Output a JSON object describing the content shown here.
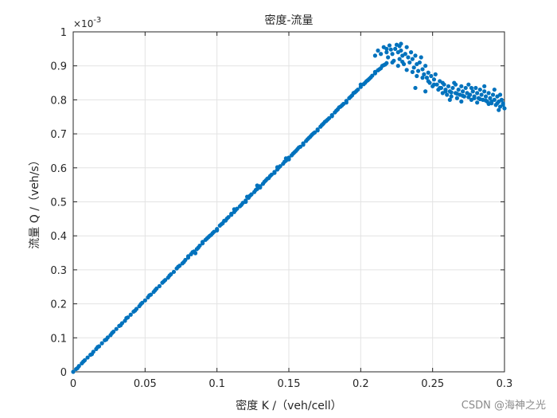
{
  "chart_data": {
    "type": "scatter",
    "title": "密度-流量",
    "xlabel": "密度 K /（veh/cell）",
    "ylabel": "流量 Q /（veh/s）",
    "xlim": [
      0,
      0.3
    ],
    "ylim": [
      0,
      1
    ],
    "y_multiplier": "×10",
    "y_multiplier_exponent": "-3",
    "xticks": [
      0,
      0.05,
      0.1,
      0.15,
      0.2,
      0.25,
      0.3
    ],
    "xtick_labels": [
      "0",
      "0.05",
      "0.1",
      "0.15",
      "0.2",
      "0.25",
      "0.3"
    ],
    "yticks": [
      0,
      0.1,
      0.2,
      0.3,
      0.4,
      0.5,
      0.6,
      0.7,
      0.8,
      0.9,
      1
    ],
    "ytick_labels": [
      "0",
      "0.1",
      "0.2",
      "0.3",
      "0.4",
      "0.5",
      "0.6",
      "0.7",
      "0.8",
      "0.9",
      "1"
    ],
    "grid": true,
    "series": [
      {
        "color": "#0072BD",
        "points": [
          [
            0.0,
            0.0
          ],
          [
            0.002,
            0.008
          ],
          [
            0.004,
            0.017
          ],
          [
            0.006,
            0.025
          ],
          [
            0.008,
            0.034
          ],
          [
            0.01,
            0.042
          ],
          [
            0.012,
            0.05
          ],
          [
            0.014,
            0.059
          ],
          [
            0.016,
            0.067
          ],
          [
            0.018,
            0.075
          ],
          [
            0.02,
            0.084
          ],
          [
            0.022,
            0.093
          ],
          [
            0.024,
            0.101
          ],
          [
            0.026,
            0.108
          ],
          [
            0.028,
            0.118
          ],
          [
            0.03,
            0.126
          ],
          [
            0.032,
            0.135
          ],
          [
            0.034,
            0.143
          ],
          [
            0.036,
            0.15
          ],
          [
            0.038,
            0.16
          ],
          [
            0.04,
            0.168
          ],
          [
            0.042,
            0.177
          ],
          [
            0.044,
            0.185
          ],
          [
            0.046,
            0.193
          ],
          [
            0.048,
            0.203
          ],
          [
            0.05,
            0.21
          ],
          [
            0.052,
            0.219
          ],
          [
            0.054,
            0.227
          ],
          [
            0.056,
            0.235
          ],
          [
            0.058,
            0.245
          ],
          [
            0.06,
            0.252
          ],
          [
            0.062,
            0.262
          ],
          [
            0.064,
            0.27
          ],
          [
            0.066,
            0.277
          ],
          [
            0.068,
            0.287
          ],
          [
            0.07,
            0.294
          ],
          [
            0.072,
            0.304
          ],
          [
            0.074,
            0.312
          ],
          [
            0.076,
            0.319
          ],
          [
            0.078,
            0.329
          ],
          [
            0.08,
            0.336
          ],
          [
            0.082,
            0.346
          ],
          [
            0.084,
            0.354
          ],
          [
            0.086,
            0.361
          ],
          [
            0.088,
            0.371
          ],
          [
            0.09,
            0.378
          ],
          [
            0.092,
            0.388
          ],
          [
            0.094,
            0.396
          ],
          [
            0.096,
            0.403
          ],
          [
            0.098,
            0.412
          ],
          [
            0.1,
            0.42
          ],
          [
            0.102,
            0.43
          ],
          [
            0.104,
            0.437
          ],
          [
            0.106,
            0.445
          ],
          [
            0.108,
            0.455
          ],
          [
            0.11,
            0.462
          ],
          [
            0.112,
            0.47
          ],
          [
            0.114,
            0.48
          ],
          [
            0.116,
            0.487
          ],
          [
            0.118,
            0.497
          ],
          [
            0.12,
            0.504
          ],
          [
            0.122,
            0.512
          ],
          [
            0.124,
            0.522
          ],
          [
            0.126,
            0.529
          ],
          [
            0.128,
            0.538
          ],
          [
            0.13,
            0.546
          ],
          [
            0.132,
            0.553
          ],
          [
            0.134,
            0.563
          ],
          [
            0.136,
            0.57
          ],
          [
            0.138,
            0.58
          ],
          [
            0.14,
            0.588
          ],
          [
            0.142,
            0.595
          ],
          [
            0.144,
            0.605
          ],
          [
            0.146,
            0.612
          ],
          [
            0.148,
            0.621
          ],
          [
            0.15,
            0.63
          ],
          [
            0.152,
            0.637
          ],
          [
            0.154,
            0.646
          ],
          [
            0.156,
            0.655
          ],
          [
            0.158,
            0.662
          ],
          [
            0.16,
            0.672
          ],
          [
            0.162,
            0.679
          ],
          [
            0.164,
            0.688
          ],
          [
            0.166,
            0.697
          ],
          [
            0.168,
            0.704
          ],
          [
            0.17,
            0.713
          ],
          [
            0.172,
            0.721
          ],
          [
            0.174,
            0.73
          ],
          [
            0.176,
            0.738
          ],
          [
            0.178,
            0.746
          ],
          [
            0.18,
            0.755
          ],
          [
            0.182,
            0.763
          ],
          [
            0.184,
            0.772
          ],
          [
            0.186,
            0.78
          ],
          [
            0.188,
            0.788
          ],
          [
            0.19,
            0.797
          ],
          [
            0.192,
            0.805
          ],
          [
            0.194,
            0.813
          ],
          [
            0.196,
            0.822
          ],
          [
            0.198,
            0.83
          ],
          [
            0.2,
            0.838
          ],
          [
            0.202,
            0.846
          ],
          [
            0.204,
            0.855
          ],
          [
            0.206,
            0.862
          ],
          [
            0.208,
            0.871
          ],
          [
            0.21,
            0.878
          ],
          [
            0.212,
            0.887
          ],
          [
            0.214,
            0.893
          ],
          [
            0.216,
            0.902
          ],
          [
            0.218,
            0.908
          ],
          [
            0.003,
            0.011
          ],
          [
            0.007,
            0.03
          ],
          [
            0.013,
            0.052
          ],
          [
            0.017,
            0.073
          ],
          [
            0.023,
            0.095
          ],
          [
            0.027,
            0.114
          ],
          [
            0.033,
            0.137
          ],
          [
            0.037,
            0.158
          ],
          [
            0.043,
            0.18
          ],
          [
            0.047,
            0.199
          ],
          [
            0.053,
            0.225
          ],
          [
            0.057,
            0.24
          ],
          [
            0.063,
            0.266
          ],
          [
            0.067,
            0.283
          ],
          [
            0.073,
            0.309
          ],
          [
            0.077,
            0.323
          ],
          [
            0.083,
            0.352
          ],
          [
            0.087,
            0.365
          ],
          [
            0.093,
            0.392
          ],
          [
            0.097,
            0.408
          ],
          [
            0.103,
            0.434
          ],
          [
            0.107,
            0.451
          ],
          [
            0.113,
            0.476
          ],
          [
            0.117,
            0.491
          ],
          [
            0.123,
            0.518
          ],
          [
            0.127,
            0.535
          ],
          [
            0.133,
            0.559
          ],
          [
            0.137,
            0.576
          ],
          [
            0.143,
            0.601
          ],
          [
            0.147,
            0.618
          ],
          [
            0.153,
            0.642
          ],
          [
            0.157,
            0.66
          ],
          [
            0.163,
            0.684
          ],
          [
            0.167,
            0.701
          ],
          [
            0.173,
            0.726
          ],
          [
            0.177,
            0.742
          ],
          [
            0.183,
            0.768
          ],
          [
            0.187,
            0.784
          ],
          [
            0.193,
            0.809
          ],
          [
            0.197,
            0.826
          ],
          [
            0.203,
            0.85
          ],
          [
            0.207,
            0.866
          ],
          [
            0.213,
            0.89
          ],
          [
            0.217,
            0.904
          ],
          [
            0.085,
            0.349
          ],
          [
            0.095,
            0.4
          ],
          [
            0.105,
            0.444
          ],
          [
            0.112,
            0.478
          ],
          [
            0.121,
            0.515
          ],
          [
            0.128,
            0.548
          ],
          [
            0.135,
            0.568
          ],
          [
            0.142,
            0.602
          ],
          [
            0.148,
            0.628
          ],
          [
            0.155,
            0.65
          ],
          [
            0.165,
            0.692
          ],
          [
            0.175,
            0.735
          ],
          [
            0.185,
            0.778
          ],
          [
            0.195,
            0.82
          ],
          [
            0.205,
            0.858
          ],
          [
            0.215,
            0.9
          ],
          [
            0.16,
            0.668
          ],
          [
            0.17,
            0.71
          ],
          [
            0.18,
            0.752
          ],
          [
            0.19,
            0.792
          ],
          [
            0.2,
            0.845
          ],
          [
            0.21,
            0.882
          ],
          [
            0.15,
            0.625
          ],
          [
            0.14,
            0.585
          ],
          [
            0.13,
            0.542
          ],
          [
            0.12,
            0.5
          ],
          [
            0.11,
            0.465
          ],
          [
            0.1,
            0.416
          ],
          [
            0.09,
            0.382
          ],
          [
            0.08,
            0.34
          ],
          [
            0.21,
            0.93
          ],
          [
            0.212,
            0.945
          ],
          [
            0.214,
            0.935
          ],
          [
            0.216,
            0.955
          ],
          [
            0.218,
            0.94
          ],
          [
            0.219,
            0.925
          ],
          [
            0.22,
            0.96
          ],
          [
            0.221,
            0.948
          ],
          [
            0.222,
            0.935
          ],
          [
            0.223,
            0.915
          ],
          [
            0.224,
            0.95
          ],
          [
            0.225,
            0.962
          ],
          [
            0.226,
            0.94
          ],
          [
            0.227,
            0.92
          ],
          [
            0.228,
            0.945
          ],
          [
            0.229,
            0.93
          ],
          [
            0.23,
            0.905
          ],
          [
            0.231,
            0.935
          ],
          [
            0.232,
            0.955
          ],
          [
            0.233,
            0.925
          ],
          [
            0.234,
            0.91
          ],
          [
            0.235,
            0.94
          ],
          [
            0.236,
            0.92
          ],
          [
            0.237,
            0.895
          ],
          [
            0.238,
            0.93
          ],
          [
            0.239,
            0.905
          ],
          [
            0.24,
            0.885
          ],
          [
            0.241,
            0.91
          ],
          [
            0.242,
            0.925
          ],
          [
            0.243,
            0.89
          ],
          [
            0.244,
            0.875
          ],
          [
            0.245,
            0.9
          ],
          [
            0.246,
            0.865
          ],
          [
            0.247,
            0.88
          ],
          [
            0.248,
            0.85
          ],
          [
            0.249,
            0.87
          ],
          [
            0.25,
            0.84
          ],
          [
            0.251,
            0.86
          ],
          [
            0.252,
            0.875
          ],
          [
            0.253,
            0.845
          ],
          [
            0.254,
            0.83
          ],
          [
            0.255,
            0.855
          ],
          [
            0.256,
            0.835
          ],
          [
            0.257,
            0.82
          ],
          [
            0.258,
            0.845
          ],
          [
            0.259,
            0.83
          ],
          [
            0.26,
            0.815
          ],
          [
            0.261,
            0.84
          ],
          [
            0.262,
            0.825
          ],
          [
            0.263,
            0.81
          ],
          [
            0.264,
            0.835
          ],
          [
            0.265,
            0.85
          ],
          [
            0.266,
            0.82
          ],
          [
            0.267,
            0.805
          ],
          [
            0.268,
            0.83
          ],
          [
            0.269,
            0.815
          ],
          [
            0.27,
            0.84
          ],
          [
            0.271,
            0.825
          ],
          [
            0.272,
            0.81
          ],
          [
            0.273,
            0.835
          ],
          [
            0.274,
            0.82
          ],
          [
            0.275,
            0.845
          ],
          [
            0.276,
            0.815
          ],
          [
            0.277,
            0.8
          ],
          [
            0.278,
            0.825
          ],
          [
            0.279,
            0.81
          ],
          [
            0.28,
            0.835
          ],
          [
            0.281,
            0.82
          ],
          [
            0.282,
            0.805
          ],
          [
            0.283,
            0.83
          ],
          [
            0.284,
            0.815
          ],
          [
            0.285,
            0.8
          ],
          [
            0.286,
            0.825
          ],
          [
            0.287,
            0.81
          ],
          [
            0.288,
            0.795
          ],
          [
            0.289,
            0.82
          ],
          [
            0.29,
            0.805
          ],
          [
            0.291,
            0.79
          ],
          [
            0.292,
            0.815
          ],
          [
            0.293,
            0.8
          ],
          [
            0.294,
            0.785
          ],
          [
            0.295,
            0.81
          ],
          [
            0.296,
            0.795
          ],
          [
            0.297,
            0.78
          ],
          [
            0.298,
            0.8
          ],
          [
            0.299,
            0.79
          ],
          [
            0.3,
            0.775
          ],
          [
            0.226,
            0.9
          ],
          [
            0.229,
            0.912
          ],
          [
            0.232,
            0.888
          ],
          [
            0.236,
            0.882
          ],
          [
            0.239,
            0.87
          ],
          [
            0.243,
            0.865
          ],
          [
            0.247,
            0.855
          ],
          [
            0.251,
            0.845
          ],
          [
            0.255,
            0.835
          ],
          [
            0.259,
            0.825
          ],
          [
            0.263,
            0.822
          ],
          [
            0.267,
            0.818
          ],
          [
            0.271,
            0.812
          ],
          [
            0.275,
            0.808
          ],
          [
            0.279,
            0.805
          ],
          [
            0.283,
            0.802
          ],
          [
            0.287,
            0.798
          ],
          [
            0.291,
            0.795
          ],
          [
            0.295,
            0.79
          ],
          [
            0.299,
            0.785
          ],
          [
            0.228,
            0.965
          ],
          [
            0.218,
            0.95
          ],
          [
            0.222,
            0.91
          ],
          [
            0.227,
            0.958
          ],
          [
            0.238,
            0.835
          ],
          [
            0.245,
            0.825
          ],
          [
            0.257,
            0.85
          ],
          [
            0.266,
            0.845
          ],
          [
            0.277,
            0.835
          ],
          [
            0.286,
            0.84
          ],
          [
            0.293,
            0.83
          ],
          [
            0.297,
            0.815
          ],
          [
            0.262,
            0.8
          ],
          [
            0.27,
            0.795
          ],
          [
            0.281,
            0.792
          ],
          [
            0.289,
            0.788
          ],
          [
            0.296,
            0.77
          ]
        ]
      }
    ]
  },
  "watermark": "CSDN @海神之光"
}
